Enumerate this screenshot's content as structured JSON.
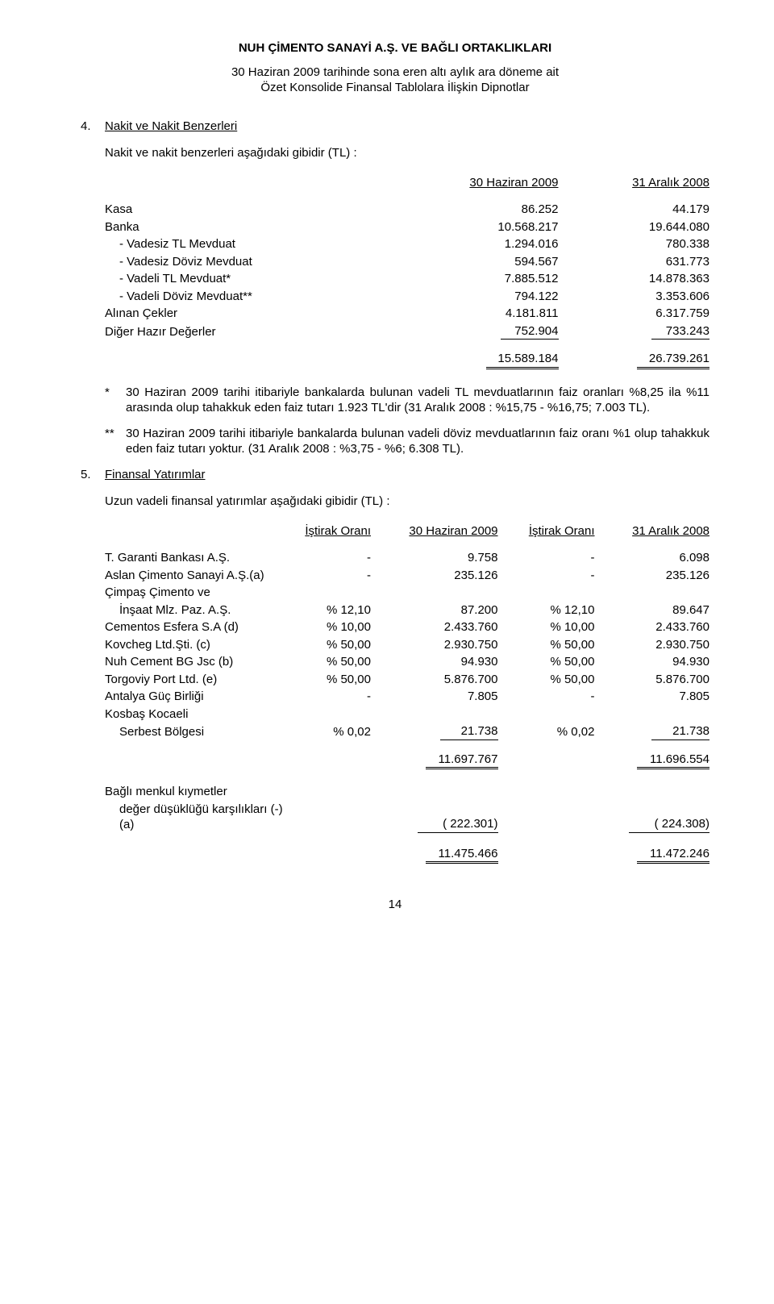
{
  "header": {
    "company": "NUH ÇİMENTO SANAYİ A.Ş. VE BAĞLI ORTAKLIKLARI",
    "line1": "30 Haziran 2009 tarihinde sona eren altı aylık ara döneme ait",
    "line2": "Özet Konsolide Finansal Tablolara İlişkin Dipnotlar"
  },
  "sec4": {
    "num": "4.",
    "title": "Nakit ve Nakit Benzerleri",
    "intro": "Nakit ve nakit benzerleri aşağıdaki gibidir (TL) :",
    "h1": "30 Haziran 2009",
    "h2": "31 Aralık 2008",
    "rows": [
      {
        "label": "Kasa",
        "v1": "86.252",
        "v2": "44.179"
      },
      {
        "label": "Banka",
        "v1": "10.568.217",
        "v2": "19.644.080"
      },
      {
        "label": "-  Vadesiz TL Mevduat",
        "sub": true,
        "v1": "1.294.016",
        "v2": "780.338"
      },
      {
        "label": "-  Vadesiz Döviz Mevduat",
        "sub": true,
        "v1": "594.567",
        "v2": "631.773"
      },
      {
        "label": "-  Vadeli TL Mevduat*",
        "sub": true,
        "v1": "7.885.512",
        "v2": "14.878.363"
      },
      {
        "label": "-  Vadeli Döviz Mevduat**",
        "sub": true,
        "v1": "794.122",
        "v2": "3.353.606"
      },
      {
        "label": "Alınan Çekler",
        "v1": "4.181.811",
        "v2": "6.317.759"
      },
      {
        "label": "Diğer Hazır Değerler",
        "v1": "752.904",
        "v2": "733.243",
        "ul": true
      }
    ],
    "total": {
      "v1": "15.589.184",
      "v2": "26.739.261"
    },
    "note1_mark": "*",
    "note1": "30 Haziran 2009 tarihi itibariyle bankalarda bulunan vadeli TL mevduatlarının faiz oranları %8,25 ila %11 arasında olup tahakkuk eden faiz tutarı 1.923 TL'dir (31 Aralık 2008 : %15,75 - %16,75; 7.003 TL).",
    "note2_mark": "**",
    "note2": "30 Haziran 2009 tarihi itibariyle bankalarda bulunan vadeli döviz mevduatlarının faiz oranı %1 olup tahakkuk eden faiz tutarı yoktur. (31 Aralık 2008 : %3,75 - %6; 6.308 TL)."
  },
  "sec5": {
    "num": "5.",
    "title": "Finansal Yatırımlar",
    "intro": "Uzun vadeli finansal yatırımlar aşağıdaki gibidir (TL) :",
    "h_o1": "İştirak Oranı",
    "h_v1": "30 Haziran 2009",
    "h_o2": "İştirak Oranı",
    "h_v2": "31 Aralık 2008",
    "rows": [
      {
        "name": "T. Garanti Bankası A.Ş.",
        "o1": "-",
        "v1": "9.758",
        "o2": "-",
        "v2": "6.098"
      },
      {
        "name": "Aslan Çimento Sanayi A.Ş.(a)",
        "o1": "-",
        "v1": "235.126",
        "o2": "-",
        "v2": "235.126"
      },
      {
        "name": "Çimpaş Çimento ve",
        "o1": "",
        "v1": "",
        "o2": "",
        "v2": "",
        "nobreak": true
      },
      {
        "name": "İnşaat Mlz. Paz. A.Ş.",
        "indent": true,
        "o1": "% 12,10",
        "v1": "87.200",
        "o2": "% 12,10",
        "v2": "89.647"
      },
      {
        "name": "Cementos Esfera S.A (d)",
        "o1": "% 10,00",
        "v1": "2.433.760",
        "o2": "% 10,00",
        "v2": "2.433.760"
      },
      {
        "name": "Kovcheg Ltd.Şti. (c)",
        "o1": "% 50,00",
        "v1": "2.930.750",
        "o2": "% 50,00",
        "v2": "2.930.750"
      },
      {
        "name": "Nuh Cement BG Jsc  (b)",
        "o1": "% 50,00",
        "v1": "94.930",
        "o2": "% 50,00",
        "v2": "94.930"
      },
      {
        "name": "Torgoviy Port Ltd. (e)",
        "o1": "% 50,00",
        "v1": "5.876.700",
        "o2": "% 50,00",
        "v2": "5.876.700"
      },
      {
        "name": "Antalya Güç Birliği",
        "o1": "-",
        "v1": "7.805",
        "o2": "-",
        "v2": "7.805"
      },
      {
        "name": "Kosbaş Kocaeli",
        "o1": "",
        "v1": "",
        "o2": "",
        "v2": "",
        "nobreak": true
      },
      {
        "name": "Serbest Bölgesi",
        "indent": true,
        "o1": "% 0,02",
        "v1": "21.738",
        "o2": "% 0,02",
        "v2": "21.738",
        "ul": true
      }
    ],
    "subtotal": {
      "v1": "11.697.767",
      "v2": "11.696.554"
    },
    "impair_l1": "Bağlı menkul kıymetler",
    "impair_l2": "değer düşüklüğü karşılıkları (-) (a)",
    "impair_v1": "(     222.301)",
    "impair_v2": "(     224.308)",
    "grand": {
      "v1": "11.475.466",
      "v2": "11.472.246"
    }
  },
  "page": "14"
}
